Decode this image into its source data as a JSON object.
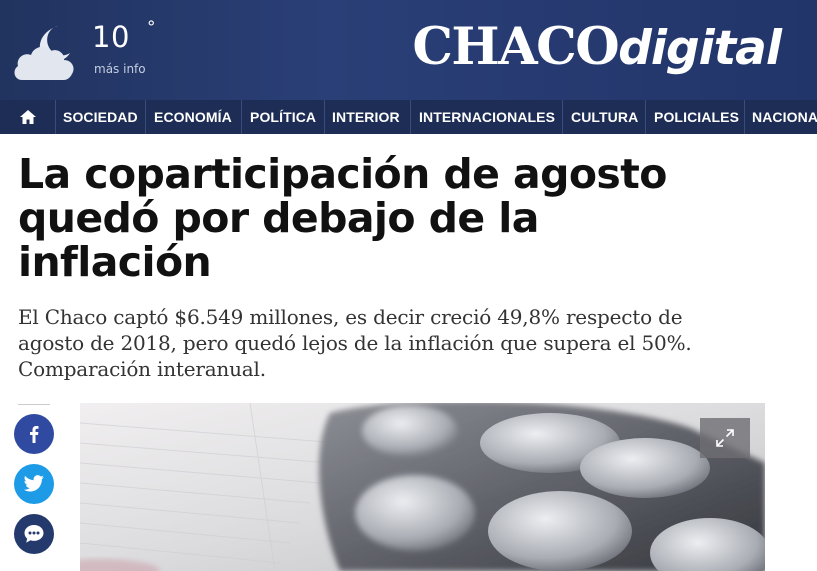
{
  "weather": {
    "temperature": "10",
    "degree_symbol": "°",
    "more_info": "más info",
    "icon": "cloud-moon-icon"
  },
  "logo": {
    "brand_main": "CHACO",
    "brand_accent": "digital"
  },
  "nav": {
    "home_icon": "home-icon",
    "items": [
      "SOCIEDAD",
      "ECONOMÍA",
      "POLÍTICA",
      "INTERIOR",
      "INTERNACIONALES",
      "CULTURA",
      "POLICIALES",
      "NACIONA"
    ]
  },
  "article": {
    "headline_lines": [
      "La coparticipación de agosto",
      "quedó por debajo de la",
      "inflación"
    ],
    "subtitle_lines": [
      "El Chaco captó $6.549 millones, es decir creció 49,8% respecto de",
      "agosto de 2018, pero quedó lejos de la inflación que supera el 50%.",
      "Comparación interanual."
    ]
  },
  "share": {
    "facebook_icon": "facebook-icon",
    "twitter_icon": "twitter-icon",
    "comments_icon": "comments-icon"
  },
  "photo": {
    "expand_icon": "expand-icon"
  },
  "colors": {
    "header_bg": "#22356a",
    "nav_bg": "#1d2d55",
    "facebook": "#2f4aa0",
    "twitter": "#1d9be6",
    "comments": "#243a6d"
  }
}
